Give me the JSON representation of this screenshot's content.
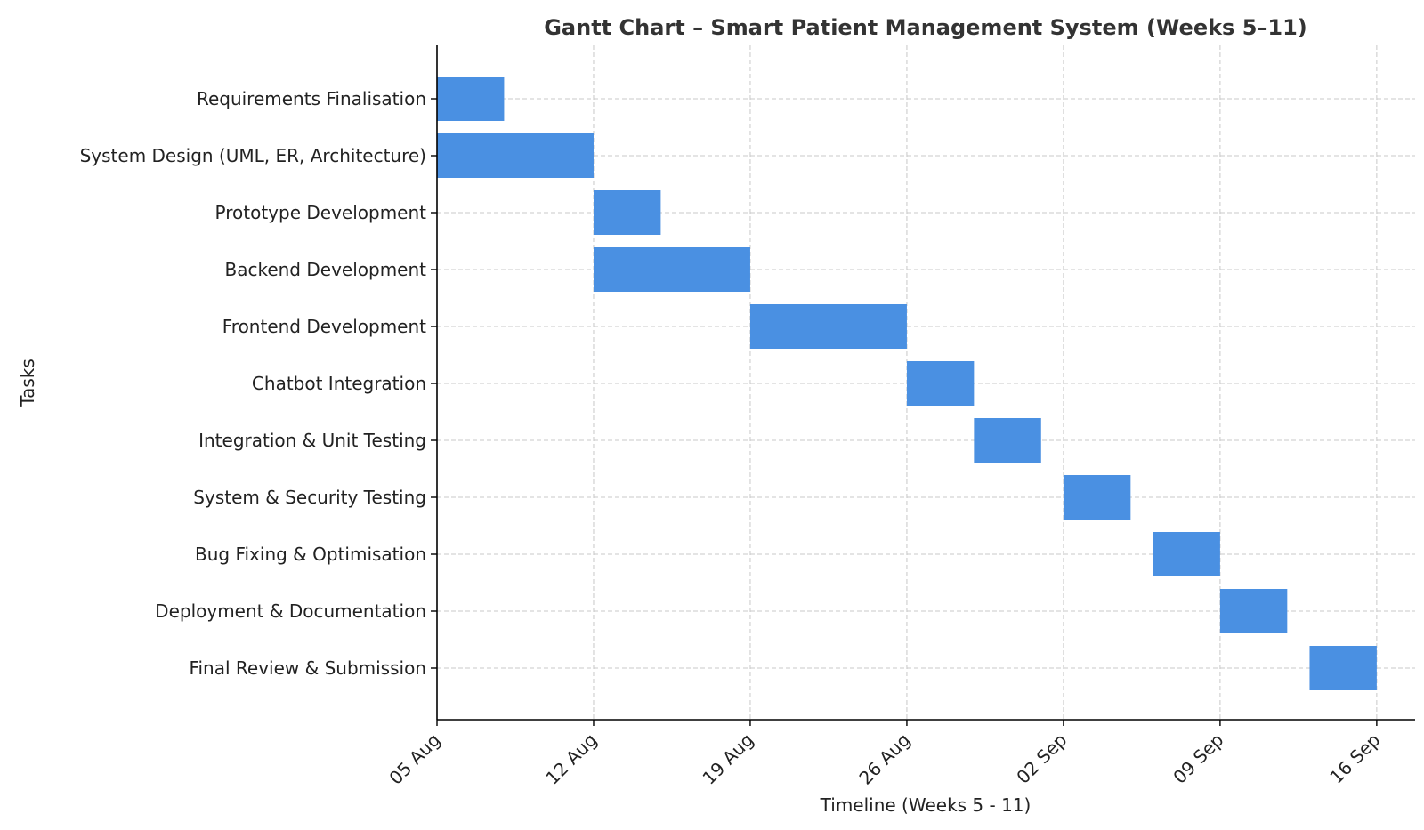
{
  "chart_data": {
    "type": "bar",
    "orientation": "horizontal-gantt",
    "title": "Gantt Chart – Smart Patient Management System (Weeks 5–11)",
    "xlabel": "Timeline (Weeks 5 - 11)",
    "ylabel": "Tasks",
    "x_axis": "date",
    "xlim": [
      "2024-08-05",
      "2024-09-18"
    ],
    "x_ticks": [
      {
        "date": "2024-08-05",
        "label": "05 Aug"
      },
      {
        "date": "2024-08-12",
        "label": "12 Aug"
      },
      {
        "date": "2024-08-19",
        "label": "19 Aug"
      },
      {
        "date": "2024-08-26",
        "label": "26 Aug"
      },
      {
        "date": "2024-09-02",
        "label": "02 Sep"
      },
      {
        "date": "2024-09-09",
        "label": "09 Sep"
      },
      {
        "date": "2024-09-16",
        "label": "16 Sep"
      }
    ],
    "grid": true,
    "bar_color": "#4a90e2",
    "tasks": [
      {
        "name": "Requirements Finalisation",
        "start": "2024-08-05",
        "end": "2024-08-08"
      },
      {
        "name": "System Design (UML, ER, Architecture)",
        "start": "2024-08-05",
        "end": "2024-08-12"
      },
      {
        "name": "Prototype Development",
        "start": "2024-08-12",
        "end": "2024-08-15"
      },
      {
        "name": "Backend Development",
        "start": "2024-08-12",
        "end": "2024-08-19"
      },
      {
        "name": "Frontend Development",
        "start": "2024-08-19",
        "end": "2024-08-26"
      },
      {
        "name": "Chatbot Integration",
        "start": "2024-08-26",
        "end": "2024-08-29"
      },
      {
        "name": "Integration & Unit Testing",
        "start": "2024-08-29",
        "end": "2024-09-01"
      },
      {
        "name": "System & Security Testing",
        "start": "2024-09-02",
        "end": "2024-09-05"
      },
      {
        "name": "Bug Fixing & Optimisation",
        "start": "2024-09-06",
        "end": "2024-09-09"
      },
      {
        "name": "Deployment & Documentation",
        "start": "2024-09-09",
        "end": "2024-09-12"
      },
      {
        "name": "Final Review & Submission",
        "start": "2024-09-13",
        "end": "2024-09-16"
      }
    ]
  }
}
